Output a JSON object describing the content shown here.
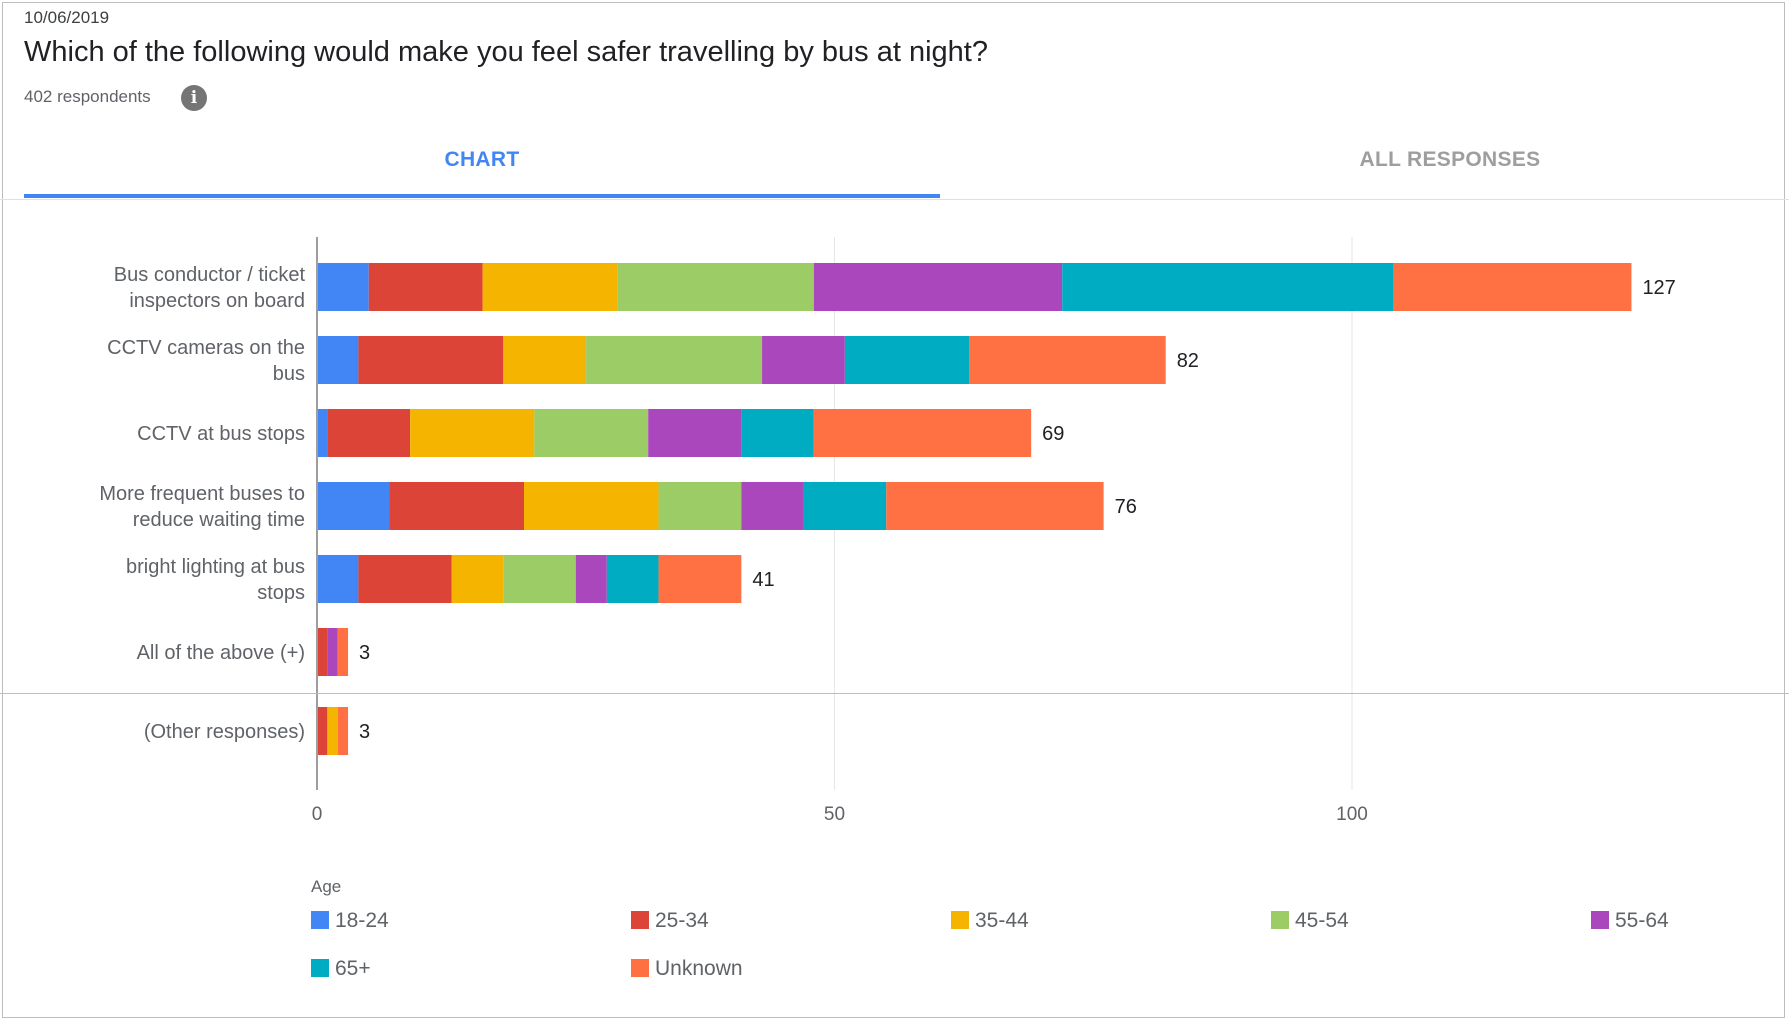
{
  "header": {
    "date": "10/06/2019",
    "title": "Which of the following would make you feel safer travelling by bus at night?",
    "respondents": "402 respondents",
    "info_icon": "info-icon"
  },
  "tabs": [
    {
      "label": "CHART",
      "active": true
    },
    {
      "label": "ALL RESPONSES",
      "active": false
    }
  ],
  "chart_data": {
    "type": "bar",
    "orientation": "horizontal",
    "stacked": true,
    "categories": [
      [
        "Bus conductor / ticket",
        "inspectors on board"
      ],
      [
        "CCTV cameras on the",
        "bus"
      ],
      [
        "CCTV at bus stops"
      ],
      [
        "More frequent buses to",
        "reduce waiting time"
      ],
      [
        "bright lighting at bus",
        "stops"
      ],
      [
        "All of the above (+)"
      ],
      [
        "(Other responses)"
      ]
    ],
    "series": [
      {
        "name": "18-24",
        "color": "#4285f4",
        "values": [
          5,
          4,
          1,
          7,
          4,
          0,
          0
        ]
      },
      {
        "name": "25-34",
        "color": "#db4437",
        "values": [
          11,
          14,
          8,
          13,
          9,
          1,
          1
        ]
      },
      {
        "name": "35-44",
        "color": "#f4b400",
        "values": [
          13,
          8,
          12,
          13,
          5,
          0,
          1
        ]
      },
      {
        "name": "45-54",
        "color": "#9ccc65",
        "values": [
          19,
          17,
          11,
          8,
          7,
          0,
          0
        ]
      },
      {
        "name": "55-64",
        "color": "#ab47bc",
        "values": [
          24,
          8,
          9,
          6,
          3,
          1,
          0
        ]
      },
      {
        "name": "65+",
        "color": "#00acc1",
        "values": [
          32,
          12,
          7,
          8,
          5,
          0,
          0
        ]
      },
      {
        "name": "Unknown",
        "color": "#ff7043",
        "values": [
          23,
          19,
          21,
          21,
          8,
          1,
          1
        ]
      }
    ],
    "totals": [
      127,
      82,
      69,
      76,
      41,
      3,
      3
    ],
    "x_ticks": [
      0,
      50,
      100
    ],
    "xlim": [
      0,
      135
    ],
    "legend_title": "Age",
    "legend_position": "bottom",
    "grid": true
  }
}
